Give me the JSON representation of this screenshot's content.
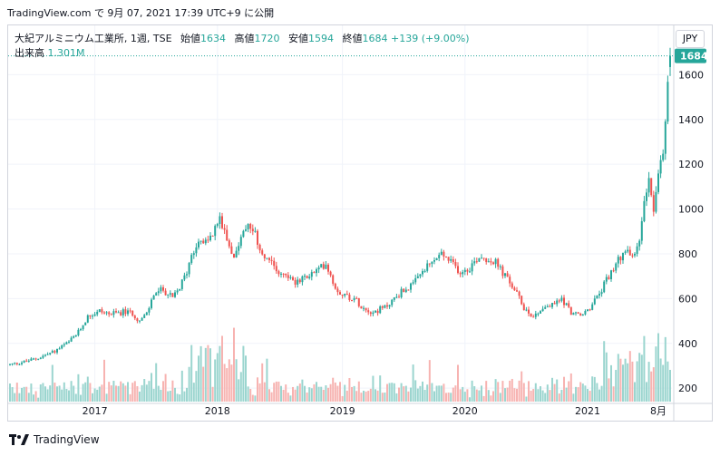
{
  "header": {
    "caption": "TradingView.com で 9月 07, 2021 17:39 UTC+9 に公開"
  },
  "legend": {
    "symbol": "大紀アルミニウム工業所, 1週, TSE",
    "open_label": "始値",
    "open_value": "1634",
    "high_label": "高値",
    "high_value": "1720",
    "low_label": "安値",
    "low_value": "1594",
    "close_label": "終値",
    "close_value": "1684",
    "change": "+139 (+9.00%)",
    "volume_label": "出来高",
    "volume_value": "1.301M"
  },
  "currency": "JPY",
  "last_price_label": "1684",
  "footer": {
    "brand": "TradingView"
  },
  "colors": {
    "up": "#26a69a",
    "down": "#ef5350",
    "up_volume": "#9bd5cf",
    "down_volume": "#f7b3b1",
    "grid": "#f0f3fa",
    "axis_text": "#131722",
    "price_line": "#26a69a"
  },
  "chart_data": {
    "type": "candlestick",
    "title": "大紀アルミニウム工業所, 1週, TSE",
    "price_axis_ticks": [
      200,
      400,
      600,
      800,
      1000,
      1200,
      1400,
      1600
    ],
    "ylim": [
      140,
      1820
    ],
    "x_ticks": [
      {
        "date": "2017-01-02",
        "label": "2017"
      },
      {
        "date": "2018-01-01",
        "label": "2018"
      },
      {
        "date": "2019-01-07",
        "label": "2019"
      },
      {
        "date": "2020-01-06",
        "label": "2020"
      },
      {
        "date": "2021-01-04",
        "label": "2021"
      },
      {
        "date": "2021-08-02",
        "label": "8月"
      }
    ],
    "xlim": [
      "2016-04-25",
      "2021-09-06"
    ],
    "close_anchors": [
      [
        "2016-04-25",
        305
      ],
      [
        "2016-06-06",
        318
      ],
      [
        "2016-07-18",
        335
      ],
      [
        "2016-09-05",
        365
      ],
      [
        "2016-10-17",
        405
      ],
      [
        "2016-11-14",
        450
      ],
      [
        "2016-12-12",
        520
      ],
      [
        "2017-01-16",
        545
      ],
      [
        "2017-02-20",
        530
      ],
      [
        "2017-03-27",
        540
      ],
      [
        "2017-04-24",
        535
      ],
      [
        "2017-05-15",
        500
      ],
      [
        "2017-06-05",
        530
      ],
      [
        "2017-06-26",
        620
      ],
      [
        "2017-07-24",
        640
      ],
      [
        "2017-08-21",
        600
      ],
      [
        "2017-09-11",
        650
      ],
      [
        "2017-10-02",
        720
      ],
      [
        "2017-10-16",
        800
      ],
      [
        "2017-11-06",
        860
      ],
      [
        "2017-11-27",
        850
      ],
      [
        "2017-12-18",
        890
      ],
      [
        "2018-01-08",
        960
      ],
      [
        "2018-01-29",
        880
      ],
      [
        "2018-02-19",
        790
      ],
      [
        "2018-03-12",
        870
      ],
      [
        "2018-04-02",
        920
      ],
      [
        "2018-04-23",
        880
      ],
      [
        "2018-05-14",
        800
      ],
      [
        "2018-06-04",
        760
      ],
      [
        "2018-07-02",
        720
      ],
      [
        "2018-07-30",
        700
      ],
      [
        "2018-08-27",
        670
      ],
      [
        "2018-09-24",
        700
      ],
      [
        "2018-10-22",
        720
      ],
      [
        "2018-11-19",
        760
      ],
      [
        "2018-12-17",
        650
      ],
      [
        "2019-01-07",
        620
      ],
      [
        "2019-02-11",
        600
      ],
      [
        "2019-03-11",
        560
      ],
      [
        "2019-04-08",
        540
      ],
      [
        "2019-05-13",
        560
      ],
      [
        "2019-06-10",
        600
      ],
      [
        "2019-07-08",
        640
      ],
      [
        "2019-08-05",
        660
      ],
      [
        "2019-09-02",
        720
      ],
      [
        "2019-09-30",
        760
      ],
      [
        "2019-10-28",
        800
      ],
      [
        "2019-11-25",
        760
      ],
      [
        "2019-12-23",
        720
      ],
      [
        "2020-01-20",
        740
      ],
      [
        "2020-02-17",
        790
      ],
      [
        "2020-03-09",
        780
      ],
      [
        "2020-04-06",
        760
      ],
      [
        "2020-05-04",
        700
      ],
      [
        "2020-06-01",
        640
      ],
      [
        "2020-06-29",
        560
      ],
      [
        "2020-07-27",
        520
      ],
      [
        "2020-08-24",
        560
      ],
      [
        "2020-09-21",
        570
      ],
      [
        "2020-10-19",
        600
      ],
      [
        "2020-11-16",
        540
      ],
      [
        "2020-12-14",
        520
      ],
      [
        "2021-01-11",
        560
      ],
      [
        "2021-02-08",
        620
      ],
      [
        "2021-03-08",
        700
      ],
      [
        "2021-04-05",
        780
      ],
      [
        "2021-05-03",
        810
      ],
      [
        "2021-05-24",
        790
      ],
      [
        "2021-06-07",
        860
      ],
      [
        "2021-06-21",
        1050
      ],
      [
        "2021-07-05",
        1150
      ],
      [
        "2021-07-19",
        1000
      ],
      [
        "2021-08-02",
        1150
      ],
      [
        "2021-08-16",
        1250
      ],
      [
        "2021-08-30",
        1545
      ],
      [
        "2021-09-06",
        1684
      ]
    ],
    "last_candle": {
      "date": "2021-09-06",
      "open": 1634,
      "high": 1720,
      "low": 1594,
      "close": 1684,
      "volume": "1.301M"
    }
  }
}
